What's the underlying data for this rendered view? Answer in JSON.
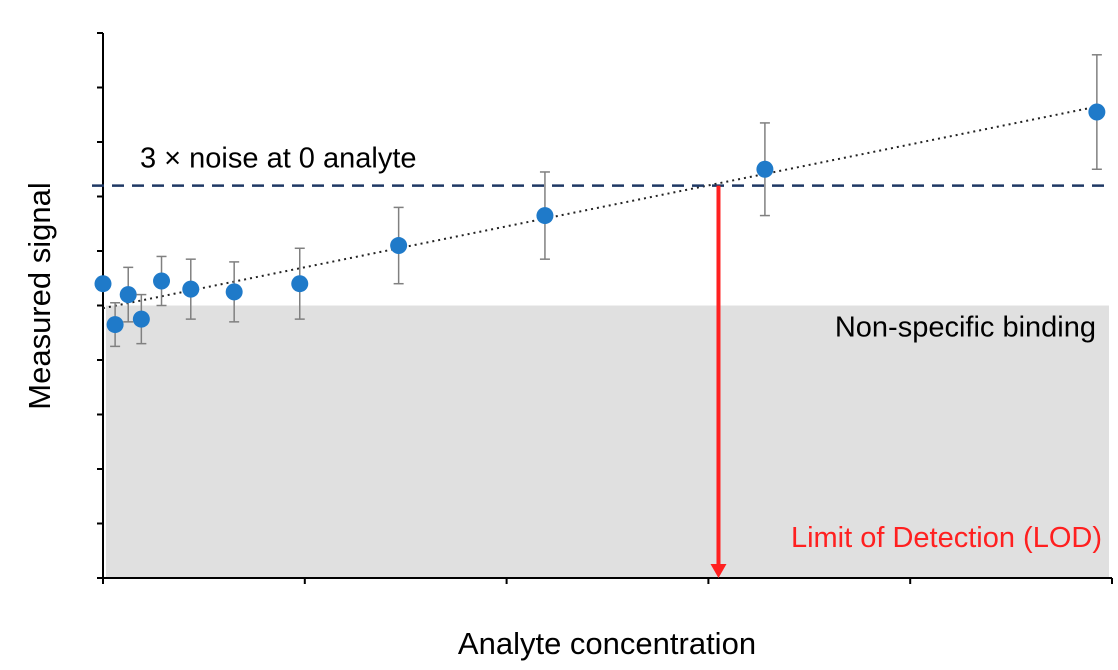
{
  "chart_data": {
    "type": "scatter",
    "title": "",
    "xlabel": "Analyte concentration",
    "ylabel": "Measured signal",
    "xlim": [
      0,
      10
    ],
    "ylim": [
      0,
      10
    ],
    "series": [
      {
        "points": [
          {
            "x": 0.0,
            "y": 5.4,
            "err": 0.0
          },
          {
            "x": 0.12,
            "y": 4.65,
            "err": 0.4
          },
          {
            "x": 0.25,
            "y": 5.2,
            "err": 0.5
          },
          {
            "x": 0.38,
            "y": 4.75,
            "err": 0.45
          },
          {
            "x": 0.58,
            "y": 5.45,
            "err": 0.45
          },
          {
            "x": 0.87,
            "y": 5.3,
            "err": 0.55
          },
          {
            "x": 1.3,
            "y": 5.25,
            "err": 0.55
          },
          {
            "x": 1.95,
            "y": 5.4,
            "err": 0.65
          },
          {
            "x": 2.93,
            "y": 6.1,
            "err": 0.7
          },
          {
            "x": 4.38,
            "y": 6.65,
            "err": 0.8
          },
          {
            "x": 6.56,
            "y": 7.5,
            "err": 0.85
          },
          {
            "x": 9.85,
            "y": 8.55,
            "err": 1.05
          }
        ]
      }
    ],
    "trendline": {
      "style": "dotted",
      "from": [
        0,
        4.95
      ],
      "to": [
        9.85,
        8.65
      ]
    },
    "threshold": {
      "label": "3 × noise at 0 analyte",
      "y": 7.2,
      "style": "dashed"
    },
    "nonspecific_region": {
      "label": "Non-specific binding",
      "y_top": 5.0
    },
    "lod": {
      "label": "Limit of Detection (LOD)",
      "x": 6.1
    },
    "grid": false,
    "colors": {
      "points": "#1f7ac9",
      "error_bars": "#808080",
      "trendline": "#222222",
      "threshold": "#1f3864",
      "lod": "#ff2020",
      "region": "#e0e0e0"
    }
  }
}
